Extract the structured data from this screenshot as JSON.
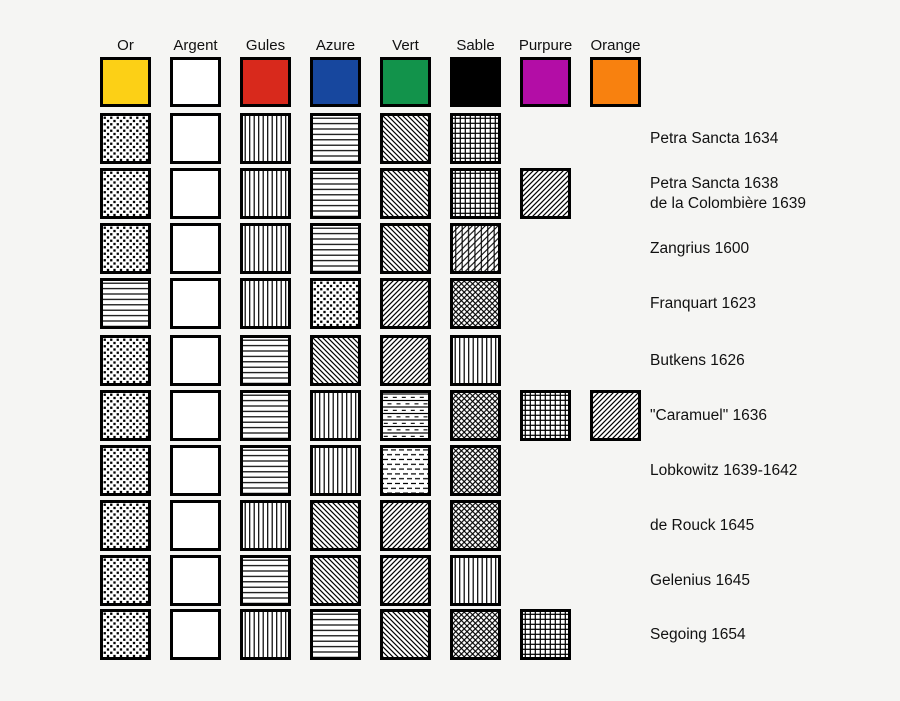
{
  "diagram": {
    "description": "Comparison of heraldic hatching systems",
    "background_color": "#F5F5F3",
    "swatch_border_color": "#000000",
    "hatch_ink_color": "#000000",
    "hatch_field_color": "#FFFFFF"
  },
  "columns": [
    {
      "key": "or",
      "label": "Or",
      "color": "#FCD016"
    },
    {
      "key": "argent",
      "label": "Argent",
      "color": "#FFFFFF"
    },
    {
      "key": "gules",
      "label": "Gules",
      "color": "#D8291C"
    },
    {
      "key": "azure",
      "label": "Azure",
      "color": "#17479E"
    },
    {
      "key": "vert",
      "label": "Vert",
      "color": "#12934B"
    },
    {
      "key": "sable",
      "label": "Sable",
      "color": "#000000"
    },
    {
      "key": "purpure",
      "label": "Purpure",
      "color": "#B30DA6"
    },
    {
      "key": "orange",
      "label": "Orange",
      "color": "#F8810F"
    }
  ],
  "pattern_legend": {
    "dots": "field of black dots",
    "plain": "plain white",
    "vertical": "vertical lines",
    "horizontal": "horizontal lines",
    "diag-desc": "diagonal lines top-left to bottom-right",
    "diag-asc": "diagonal lines bottom-left to top-right",
    "grid": "square cross-hatch of vertical and horizontal lines",
    "vert-diag": "vertical lines crossed by ascending diagonals",
    "diag-cross": "diagonal cross-hatch of both diagonals",
    "dash-solid-alt": "alternating solid horizontal lines and rows of dashes",
    "dashes": "rows of horizontal dashes"
  },
  "rows": [
    {
      "labels": [
        "Petra Sancta 1634"
      ],
      "cells": {
        "or": "dots",
        "argent": "plain",
        "gules": "vertical",
        "azure": "horizontal",
        "vert": "diag-desc",
        "sable": "grid"
      }
    },
    {
      "labels": [
        "Petra Sancta 1638",
        "de la Colombière 1639"
      ],
      "cells": {
        "or": "dots",
        "argent": "plain",
        "gules": "vertical",
        "azure": "horizontal",
        "vert": "diag-desc",
        "sable": "grid",
        "purpure": "diag-asc"
      }
    },
    {
      "labels": [
        "Zangrius 1600"
      ],
      "cells": {
        "or": "dots",
        "argent": "plain",
        "gules": "vertical",
        "azure": "horizontal",
        "vert": "diag-desc",
        "sable": "vert-diag"
      }
    },
    {
      "labels": [
        "Franquart 1623"
      ],
      "cells": {
        "or": "horizontal",
        "argent": "plain",
        "gules": "vertical",
        "azure": "dots",
        "vert": "diag-asc",
        "sable": "diag-cross"
      }
    },
    {
      "labels": [
        "Butkens 1626"
      ],
      "cells": {
        "or": "dots",
        "argent": "plain",
        "gules": "horizontal",
        "azure": "diag-desc",
        "vert": "diag-asc",
        "sable": "vertical"
      }
    },
    {
      "labels": [
        "\"Caramuel\" 1636"
      ],
      "cells": {
        "or": "dots",
        "argent": "plain",
        "gules": "horizontal",
        "azure": "vertical",
        "vert": "dash-solid-alt",
        "sable": "diag-cross",
        "purpure": "grid",
        "orange": "diag-asc"
      }
    },
    {
      "labels": [
        "Lobkowitz 1639-1642"
      ],
      "cells": {
        "or": "dots",
        "argent": "plain",
        "gules": "horizontal",
        "azure": "vertical",
        "vert": "dashes",
        "sable": "diag-cross"
      }
    },
    {
      "labels": [
        "de Rouck 1645"
      ],
      "cells": {
        "or": "dots",
        "argent": "plain",
        "gules": "vertical",
        "azure": "diag-desc",
        "vert": "diag-asc",
        "sable": "diag-cross"
      }
    },
    {
      "labels": [
        "Gelenius 1645"
      ],
      "cells": {
        "or": "dots",
        "argent": "plain",
        "gules": "horizontal",
        "azure": "diag-desc",
        "vert": "diag-asc",
        "sable": "vertical"
      }
    },
    {
      "labels": [
        "Segoing 1654"
      ],
      "cells": {
        "or": "dots",
        "argent": "plain",
        "gules": "vertical",
        "azure": "horizontal",
        "vert": "diag-desc",
        "sable": "diag-cross",
        "purpure": "grid"
      }
    }
  ]
}
